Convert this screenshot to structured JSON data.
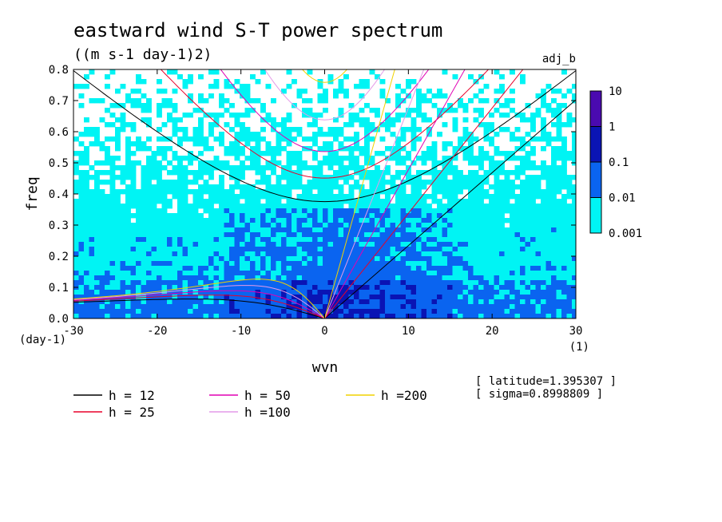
{
  "chart_data": {
    "type": "heatmap",
    "title": "eastward wind S-T power spectrum",
    "subtitle": "((m s-1 day-1)2)",
    "run_label": "adj_b",
    "xlabel": "wvn",
    "ylabel": "freq",
    "x_unit": "(1)",
    "y_unit": "(day-1)",
    "xlim": [
      -30,
      30
    ],
    "ylim": [
      0,
      0.8
    ],
    "x_ticks": [
      "-30",
      "-20",
      "-10",
      "0",
      "10",
      "20",
      "30"
    ],
    "y_ticks": [
      "0.0",
      "0.1",
      "0.2",
      "0.3",
      "0.4",
      "0.5",
      "0.6",
      "0.7",
      "0.8"
    ],
    "colorbar": {
      "levels": [
        "0.001",
        "0.01",
        "0.1",
        "1",
        "10"
      ],
      "colors": [
        "#00f4f4",
        "#0a64f0",
        "#0a14b4",
        "#4a0ab0"
      ]
    },
    "dispersion_curves": [
      {
        "name": "h = 12",
        "h": 12,
        "color": "#000000"
      },
      {
        "name": "h = 25",
        "h": 25,
        "color": "#e8002a"
      },
      {
        "name": "h = 50",
        "h": 50,
        "color": "#e000b4"
      },
      {
        "name": "h =100",
        "h": 100,
        "color": "#e49ae8"
      },
      {
        "name": "h =200",
        "h": 200,
        "color": "#f0d200"
      }
    ],
    "info": {
      "latitude": "[ latitude=1.395307 ]",
      "sigma": "[ sigma=0.8998809 ]"
    }
  }
}
